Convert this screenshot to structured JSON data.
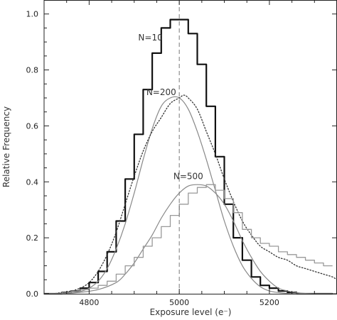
{
  "chart_data": {
    "type": "line",
    "title": "",
    "xlabel": "Exposure level (e⁻)",
    "ylabel": "Relative Frequency",
    "xlim": [
      4700,
      5350
    ],
    "ylim": [
      0,
      1.05
    ],
    "xticks": [
      4800,
      5000,
      5200
    ],
    "xtick_labels": [
      "4800",
      "5000",
      "5200"
    ],
    "yticks": [
      0.0,
      0.2,
      0.4,
      0.6,
      0.8,
      1.0
    ],
    "ytick_labels": [
      "0.0",
      "0.2",
      "0.4",
      "0.6",
      "0.8",
      "1.0"
    ],
    "grid": false,
    "reference_line_x": 5000,
    "annotations": [
      {
        "text": "N=10",
        "x": 4936,
        "y": 0.905
      },
      {
        "text": "N=200",
        "x": 4960,
        "y": 0.71
      },
      {
        "text": "N=500",
        "x": 5020,
        "y": 0.41
      }
    ],
    "series": [
      {
        "style": "step",
        "stroke": "#111111",
        "width": 2.2,
        "x": [
          4700,
          4720,
          4740,
          4760,
          4780,
          4800,
          4820,
          4840,
          4860,
          4880,
          4900,
          4920,
          4940,
          4960,
          4980,
          5000,
          5020,
          5040,
          5060,
          5080,
          5100,
          5120,
          5140,
          5160,
          5180,
          5200,
          5220,
          5240,
          5260,
          5280,
          5300,
          5320
        ],
        "y": [
          0.0,
          0.0,
          0.005,
          0.01,
          0.02,
          0.04,
          0.08,
          0.15,
          0.26,
          0.41,
          0.57,
          0.73,
          0.86,
          0.95,
          0.98,
          0.98,
          0.93,
          0.82,
          0.67,
          0.49,
          0.32,
          0.2,
          0.12,
          0.06,
          0.03,
          0.02,
          0.01,
          0.005,
          0.0,
          0.0,
          0.0,
          0.0
        ]
      },
      {
        "style": "smooth",
        "stroke": "#888888",
        "width": 1.2,
        "x": [
          4700,
          4720,
          4740,
          4760,
          4780,
          4800,
          4820,
          4840,
          4860,
          4880,
          4900,
          4920,
          4940,
          4960,
          4980,
          5000,
          5020,
          5040,
          5060,
          5080,
          5100,
          5120,
          5140,
          5160,
          5180,
          5200,
          5220,
          5240,
          5260,
          5280,
          5300,
          5320,
          5340
        ],
        "y": [
          0.0,
          0.0,
          0.0,
          0.003,
          0.008,
          0.02,
          0.045,
          0.09,
          0.16,
          0.25,
          0.36,
          0.48,
          0.59,
          0.67,
          0.7,
          0.7,
          0.66,
          0.58,
          0.48,
          0.37,
          0.26,
          0.17,
          0.1,
          0.055,
          0.025,
          0.01,
          0.004,
          0.001,
          0.0,
          0.0,
          0.0,
          0.0,
          0.0
        ]
      },
      {
        "style": "dotted",
        "stroke": "#333333",
        "width": 1.3,
        "x": [
          4700,
          4720,
          4740,
          4760,
          4780,
          4800,
          4820,
          4840,
          4860,
          4880,
          4900,
          4920,
          4940,
          4960,
          4980,
          5000,
          5010,
          5020,
          5040,
          5060,
          5080,
          5100,
          5120,
          5140,
          5160,
          5180,
          5200,
          5220,
          5240,
          5260,
          5280,
          5300,
          5320,
          5340,
          5350
        ],
        "y": [
          0.0,
          0.0,
          0.005,
          0.01,
          0.02,
          0.04,
          0.08,
          0.14,
          0.22,
          0.32,
          0.42,
          0.51,
          0.58,
          0.63,
          0.68,
          0.7,
          0.71,
          0.7,
          0.66,
          0.58,
          0.5,
          0.41,
          0.33,
          0.26,
          0.21,
          0.17,
          0.15,
          0.13,
          0.12,
          0.1,
          0.09,
          0.08,
          0.07,
          0.06,
          0.05
        ]
      },
      {
        "style": "smooth",
        "stroke": "#888888",
        "width": 1.2,
        "x": [
          4700,
          4740,
          4780,
          4820,
          4860,
          4880,
          4900,
          4920,
          4940,
          4960,
          4980,
          5000,
          5020,
          5040,
          5060,
          5080,
          5100,
          5120,
          5140,
          5160,
          5180,
          5200,
          5220,
          5240,
          5260,
          5280,
          5300
        ],
        "y": [
          0.0,
          0.0,
          0.005,
          0.015,
          0.04,
          0.07,
          0.11,
          0.16,
          0.21,
          0.27,
          0.32,
          0.36,
          0.385,
          0.39,
          0.385,
          0.36,
          0.32,
          0.26,
          0.19,
          0.13,
          0.08,
          0.045,
          0.02,
          0.01,
          0.004,
          0.001,
          0.0
        ]
      },
      {
        "style": "step",
        "stroke": "#999999",
        "width": 1.3,
        "x": [
          4700,
          4720,
          4740,
          4760,
          4780,
          4800,
          4820,
          4840,
          4860,
          4880,
          4900,
          4920,
          4940,
          4960,
          4980,
          5000,
          5020,
          5040,
          5060,
          5080,
          5100,
          5120,
          5140,
          5160,
          5180,
          5200,
          5220,
          5240,
          5260,
          5280,
          5300,
          5320
        ],
        "y": [
          0.0,
          0.0,
          0.005,
          0.01,
          0.015,
          0.02,
          0.03,
          0.045,
          0.07,
          0.1,
          0.13,
          0.17,
          0.2,
          0.24,
          0.28,
          0.32,
          0.36,
          0.38,
          0.39,
          0.37,
          0.34,
          0.29,
          0.23,
          0.2,
          0.18,
          0.17,
          0.15,
          0.14,
          0.13,
          0.12,
          0.11,
          0.1
        ]
      }
    ]
  }
}
